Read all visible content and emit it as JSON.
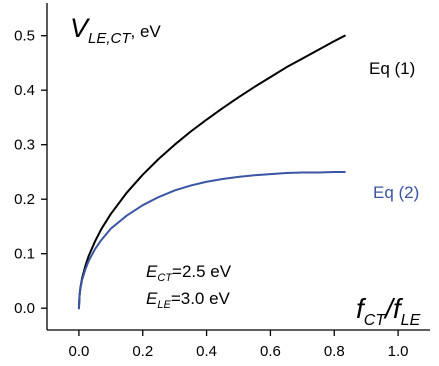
{
  "chart_data": {
    "type": "line",
    "title": "",
    "ylabel": {
      "main": "V",
      "sub": "LE,CT",
      "unit": ", eV"
    },
    "xlabel": {
      "part1_main": "f",
      "part1_sub": "CT",
      "sep": "/",
      "part2_main": "f",
      "part2_sub": "LE"
    },
    "xlim": [
      -0.1,
      1.1
    ],
    "ylim": [
      -0.04,
      0.56
    ],
    "x_ticks": [
      0.0,
      0.2,
      0.4,
      0.6,
      0.8,
      1.0
    ],
    "x_tick_labels": [
      "0.0",
      "0.2",
      "0.4",
      "0.6",
      "0.8",
      "1.0"
    ],
    "y_ticks": [
      0.0,
      0.1,
      0.2,
      0.3,
      0.4,
      0.5
    ],
    "y_tick_labels": [
      "0.0",
      "0.1",
      "0.2",
      "0.3",
      "0.4",
      "0.5"
    ],
    "grid": false,
    "series": [
      {
        "name": "Eq (1)",
        "color": "#000000",
        "x": [
          0.0,
          0.002,
          0.005,
          0.01,
          0.02,
          0.03,
          0.05,
          0.07,
          0.1,
          0.15,
          0.2,
          0.25,
          0.3,
          0.35,
          0.4,
          0.45,
          0.5,
          0.55,
          0.6,
          0.65,
          0.7,
          0.75,
          0.8,
          0.833
        ],
        "y": [
          0.0,
          0.024,
          0.039,
          0.055,
          0.077,
          0.095,
          0.122,
          0.145,
          0.173,
          0.212,
          0.245,
          0.274,
          0.3,
          0.324,
          0.346,
          0.367,
          0.387,
          0.406,
          0.424,
          0.442,
          0.458,
          0.474,
          0.49,
          0.5
        ]
      },
      {
        "name": "Eq (2)",
        "color": "#3a55a4",
        "x": [
          0.0,
          0.002,
          0.005,
          0.01,
          0.02,
          0.03,
          0.05,
          0.07,
          0.1,
          0.15,
          0.2,
          0.25,
          0.3,
          0.35,
          0.4,
          0.45,
          0.5,
          0.55,
          0.6,
          0.65,
          0.7,
          0.75,
          0.8,
          0.833
        ],
        "y": [
          0.0,
          0.023,
          0.037,
          0.052,
          0.071,
          0.086,
          0.108,
          0.125,
          0.146,
          0.17,
          0.189,
          0.204,
          0.216,
          0.225,
          0.232,
          0.237,
          0.241,
          0.244,
          0.246,
          0.248,
          0.249,
          0.249,
          0.25,
          0.25
        ]
      }
    ],
    "annotations": [
      {
        "main": "E",
        "sub": "CT",
        "text": "=2.5 eV"
      },
      {
        "main": "E",
        "sub": "LE",
        "text": "=3.0 eV"
      }
    ]
  }
}
